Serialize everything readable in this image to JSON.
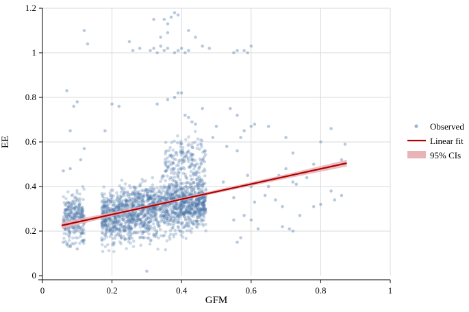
{
  "chart_data": {
    "type": "scatter",
    "title": "",
    "xlabel": "GFM",
    "ylabel": "EE",
    "xlim": [
      0,
      1
    ],
    "ylim": [
      0,
      1.2
    ],
    "x_ticks": [
      0,
      0.2,
      0.4,
      0.6,
      0.8,
      1
    ],
    "x_tick_labels": [
      "0",
      "0.2",
      "0.4",
      "0.6",
      "0.8",
      "1"
    ],
    "y_ticks": [
      0,
      0.2,
      0.4,
      0.6,
      0.8,
      1,
      1.2
    ],
    "y_tick_labels": [
      "0",
      "0.2",
      "0.4",
      "0.6",
      "0.8",
      "1",
      "1.2"
    ],
    "grid": true,
    "legend_position": "right",
    "colors": {
      "observed": "#4a78a8",
      "fit": "#b00000",
      "ci": "#e8b4b8"
    },
    "series": [
      {
        "name": "Observed",
        "kind": "scatter",
        "points": [
          [
            0.07,
            0.83
          ],
          [
            0.08,
            0.65
          ],
          [
            0.1,
            0.78
          ],
          [
            0.09,
            0.76
          ],
          [
            0.12,
            1.1
          ],
          [
            0.13,
            1.04
          ],
          [
            0.25,
            1.05
          ],
          [
            0.2,
            0.77
          ],
          [
            0.22,
            0.76
          ],
          [
            0.18,
            0.65
          ],
          [
            0.32,
            1.15
          ],
          [
            0.35,
            1.15
          ],
          [
            0.36,
            1.13
          ],
          [
            0.37,
            1.16
          ],
          [
            0.38,
            1.18
          ],
          [
            0.39,
            1.17
          ],
          [
            0.42,
            1.1
          ],
          [
            0.44,
            1.07
          ],
          [
            0.36,
            1.09
          ],
          [
            0.34,
            1.07
          ],
          [
            0.26,
            1.01
          ],
          [
            0.28,
            1.02
          ],
          [
            0.31,
            1.01
          ],
          [
            0.32,
            1.02
          ],
          [
            0.33,
            1.0
          ],
          [
            0.34,
            1.03
          ],
          [
            0.35,
            1.01
          ],
          [
            0.36,
            1.02
          ],
          [
            0.38,
            1.0
          ],
          [
            0.39,
            1.01
          ],
          [
            0.4,
            1.02
          ],
          [
            0.41,
            1.0
          ],
          [
            0.42,
            1.01
          ],
          [
            0.46,
            1.03
          ],
          [
            0.55,
            1.0
          ],
          [
            0.56,
            1.01
          ],
          [
            0.58,
            1.01
          ],
          [
            0.59,
            1.0
          ],
          [
            0.6,
            1.03
          ],
          [
            0.48,
            1.02
          ],
          [
            0.39,
            0.82
          ],
          [
            0.4,
            0.82
          ],
          [
            0.38,
            0.8
          ],
          [
            0.36,
            0.79
          ],
          [
            0.33,
            0.77
          ],
          [
            0.46,
            0.75
          ],
          [
            0.54,
            0.75
          ],
          [
            0.56,
            0.72
          ],
          [
            0.6,
            0.67
          ],
          [
            0.61,
            0.68
          ],
          [
            0.41,
            0.72
          ],
          [
            0.42,
            0.71
          ],
          [
            0.43,
            0.69
          ],
          [
            0.44,
            0.68
          ],
          [
            0.5,
            0.67
          ],
          [
            0.49,
            0.62
          ],
          [
            0.58,
            0.65
          ],
          [
            0.57,
            0.62
          ],
          [
            0.53,
            0.58
          ],
          [
            0.56,
            0.56
          ],
          [
            0.65,
            0.67
          ],
          [
            0.7,
            0.62
          ],
          [
            0.72,
            0.55
          ],
          [
            0.8,
            0.6
          ],
          [
            0.83,
            0.66
          ],
          [
            0.87,
            0.59
          ],
          [
            0.86,
            0.52
          ],
          [
            0.82,
            0.48
          ],
          [
            0.78,
            0.5
          ],
          [
            0.74,
            0.46
          ],
          [
            0.7,
            0.48
          ],
          [
            0.68,
            0.45
          ],
          [
            0.66,
            0.43
          ],
          [
            0.65,
            0.4
          ],
          [
            0.64,
            0.36
          ],
          [
            0.67,
            0.34
          ],
          [
            0.69,
            0.31
          ],
          [
            0.72,
            0.42
          ],
          [
            0.73,
            0.41
          ],
          [
            0.76,
            0.44
          ],
          [
            0.78,
            0.31
          ],
          [
            0.8,
            0.32
          ],
          [
            0.83,
            0.38
          ],
          [
            0.84,
            0.34
          ],
          [
            0.86,
            0.36
          ],
          [
            0.74,
            0.27
          ],
          [
            0.71,
            0.21
          ],
          [
            0.72,
            0.2
          ],
          [
            0.69,
            0.22
          ],
          [
            0.62,
            0.21
          ],
          [
            0.6,
            0.25
          ],
          [
            0.58,
            0.27
          ],
          [
            0.55,
            0.35
          ],
          [
            0.55,
            0.25
          ],
          [
            0.57,
            0.17
          ],
          [
            0.56,
            0.15
          ],
          [
            0.61,
            0.33
          ],
          [
            0.6,
            0.4
          ],
          [
            0.59,
            0.45
          ],
          [
            0.52,
            0.42
          ],
          [
            0.3,
            0.02
          ],
          [
            0.12,
            0.57
          ],
          [
            0.11,
            0.52
          ],
          [
            0.08,
            0.48
          ],
          [
            0.06,
            0.47
          ],
          [
            0.07,
            0.14
          ],
          [
            0.06,
            0.15
          ],
          [
            0.08,
            0.13
          ],
          [
            0.1,
            0.12
          ],
          [
            0.12,
            0.16
          ]
        ],
        "cloud_note_points": []
      },
      {
        "name": "Linear fit",
        "kind": "line",
        "x": [
          0.055,
          0.875
        ],
        "y": [
          0.225,
          0.505
        ]
      },
      {
        "name": "95% CIs",
        "kind": "band",
        "x": [
          0.055,
          0.3,
          0.5,
          0.7,
          0.875
        ],
        "lower": [
          0.21,
          0.305,
          0.37,
          0.435,
          0.49
        ],
        "upper": [
          0.24,
          0.315,
          0.385,
          0.455,
          0.52
        ]
      }
    ],
    "legend": [
      "Observed",
      "Linear fit",
      "95% CIs"
    ]
  }
}
